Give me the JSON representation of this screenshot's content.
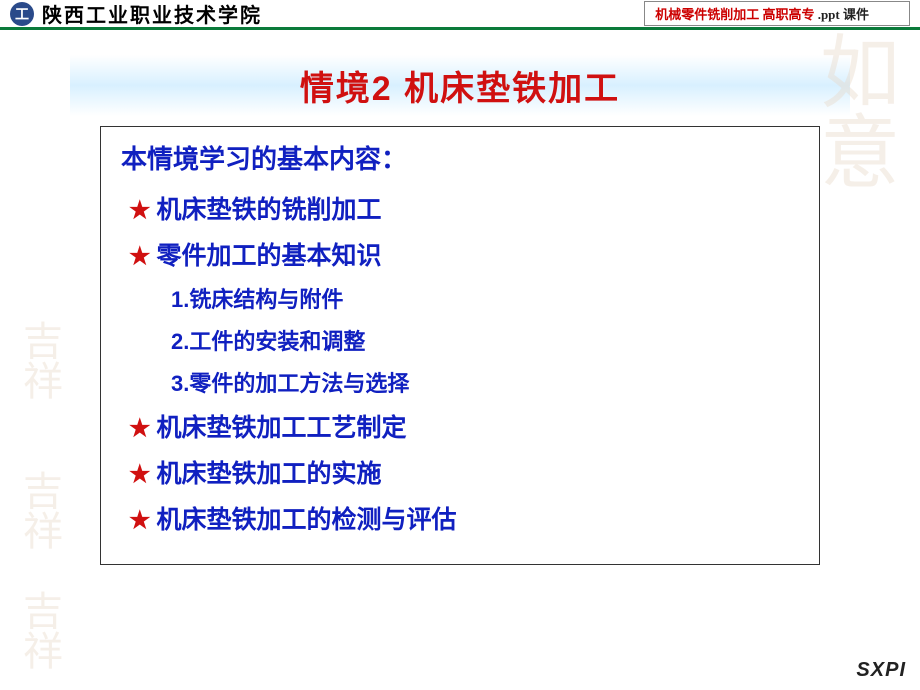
{
  "header": {
    "logo_letter": "工",
    "school_name": "陕西工业职业技术学院",
    "course_box_red": "机械零件铣削加工 高职高专",
    "course_box_black": ".ppt 课件"
  },
  "title": "情境2  机床垫铁加工",
  "content": {
    "intro": "本情境学习的基本内容：",
    "star_items": [
      "机床垫铁的铣削加工",
      "零件加工的基本知识"
    ],
    "sub_items": [
      "1.铣床结构与附件",
      "2.工件的安装和调整",
      "3.零件的加工方法与选择"
    ],
    "star_items_after": [
      "机床垫铁加工工艺制定",
      "机床垫铁加工的实施",
      "机床垫铁加工的检测与评估"
    ]
  },
  "footer_logo": "SXPI",
  "watermarks": {
    "w1": "如意",
    "w2": "吉祥",
    "w3": "吉祥",
    "w4": "吉祥"
  },
  "colors": {
    "title_red": "#d01010",
    "content_blue": "#1020c0",
    "divider_green": "#0a7a3a",
    "logo_bg": "#2a4a8a"
  }
}
